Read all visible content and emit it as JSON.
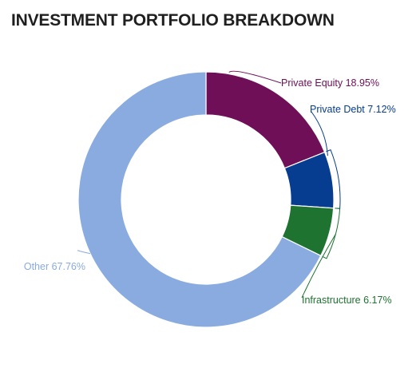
{
  "chart_data": {
    "type": "pie",
    "variant": "donut",
    "title": "INVESTMENT PORTFOLIO BREAKDOWN",
    "slices": [
      {
        "label": "Private Equity 18.95%",
        "value": 18.95,
        "color": "#6e0f57"
      },
      {
        "label": "Private Debt 7.12%",
        "value": 7.12,
        "color": "#063d91"
      },
      {
        "label": "Infrastructure 6.17%",
        "value": 6.17,
        "color": "#1e7330"
      },
      {
        "label": "Other 67.76%",
        "value": 67.76,
        "color": "#8aabe0"
      }
    ]
  }
}
